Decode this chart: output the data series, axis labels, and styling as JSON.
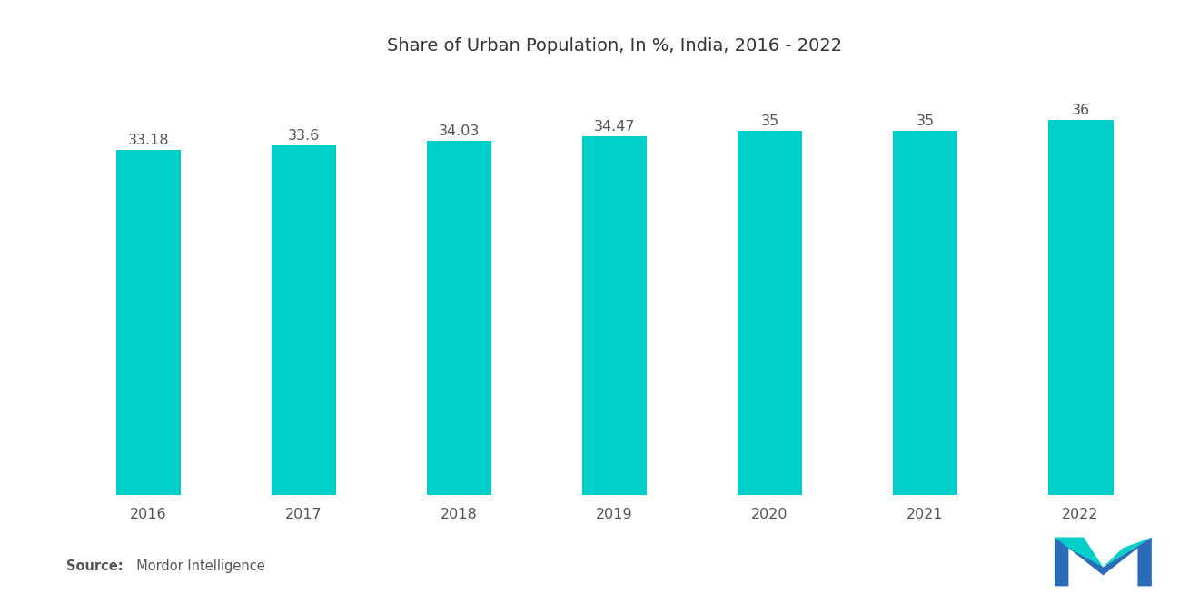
{
  "title": "Share of Urban Population, In %, India, 2016 - 2022",
  "years": [
    2016,
    2017,
    2018,
    2019,
    2020,
    2021,
    2022
  ],
  "values": [
    33.18,
    33.6,
    34.03,
    34.47,
    35,
    35,
    36
  ],
  "labels": [
    "33.18",
    "33.6",
    "34.03",
    "34.47",
    "35",
    "35",
    "36"
  ],
  "bar_color": "#00CEC9",
  "background_color": "#ffffff",
  "ylim": [
    0,
    40
  ],
  "bar_width": 0.42,
  "source_bold": "Source:",
  "source_rest": "  Mordor Intelligence",
  "title_fontsize": 14,
  "label_fontsize": 11.5,
  "tick_fontsize": 11.5
}
